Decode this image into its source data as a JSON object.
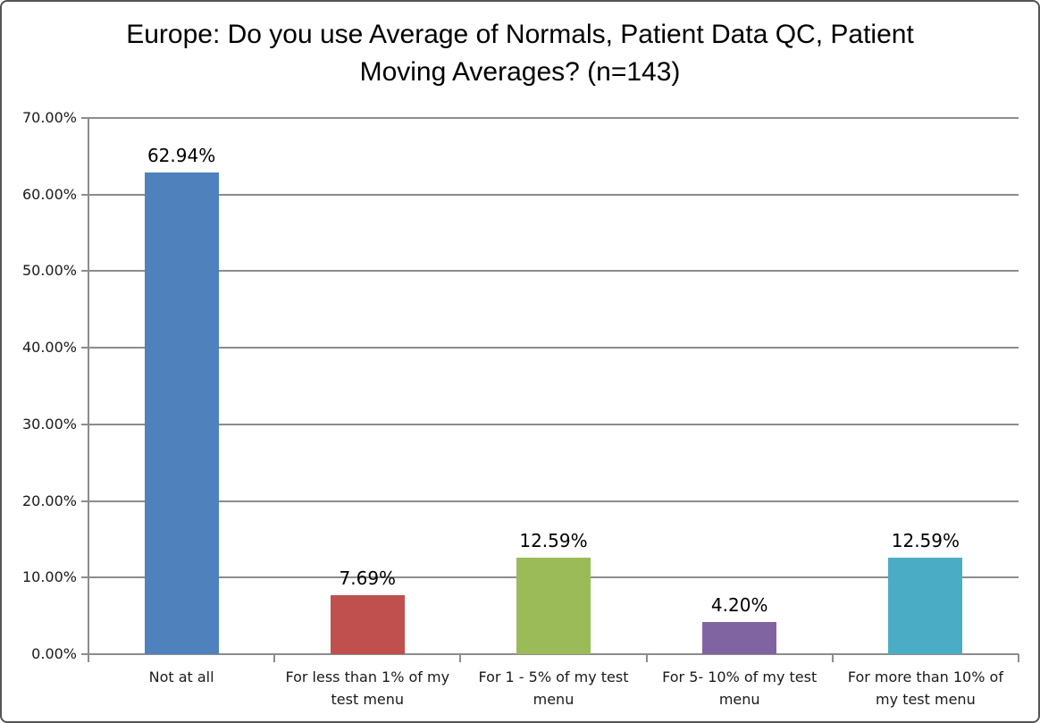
{
  "chart_data": {
    "type": "bar",
    "title": "Europe: Do you use Average of Normals, Patient Data QC, Patient Moving Averages? (n=143)",
    "categories": [
      "Not at all",
      "For less than 1% of my test menu",
      "For 1 - 5% of my test menu",
      "For 5- 10% of my test menu",
      "For more than 10% of my test menu"
    ],
    "values": [
      62.94,
      7.69,
      12.59,
      4.2,
      12.59
    ],
    "value_labels": [
      "62.94%",
      "7.69%",
      "12.59%",
      "4.20%",
      "12.59%"
    ],
    "bar_colors": [
      "#4F81BD",
      "#C0504D",
      "#9BBB59",
      "#8064A2",
      "#4BACC6"
    ],
    "ylim": [
      0,
      70
    ],
    "ytick_step": 10,
    "ytick_labels": [
      "0.00%",
      "10.00%",
      "20.00%",
      "30.00%",
      "40.00%",
      "50.00%",
      "60.00%",
      "70.00%"
    ],
    "xlabel": "",
    "ylabel": "",
    "grid": true,
    "legend": "none",
    "axis_color": "#8C8C8C",
    "label_text_color": "#1a1a1a",
    "data_label_color": "#000000",
    "background_color": "#ffffff",
    "border_color": "#545454"
  }
}
